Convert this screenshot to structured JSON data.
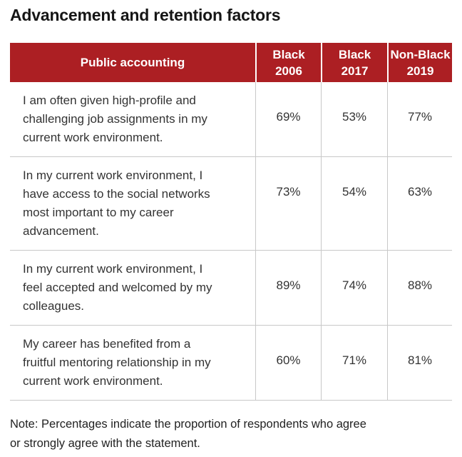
{
  "title": "Advancement and retention factors",
  "chart_data": {
    "type": "table",
    "title": "Advancement and retention factors",
    "columns": [
      "Public accounting",
      "Black\n2006",
      "Black\n2017",
      "Non-Black\n2019"
    ],
    "rows": [
      {
        "statement": "I am often given high-profile and\nchallenging job assignments in my\ncurrent work environment.",
        "values": [
          "69%",
          "53%",
          "77%"
        ]
      },
      {
        "statement": "In my current work environment, I\nhave access to the social networks\nmost important to my career\nadvancement.",
        "values": [
          "73%",
          "54%",
          "63%"
        ]
      },
      {
        "statement": "In my current work environment, I\nfeel accepted and welcomed by my\ncolleagues.",
        "values": [
          "89%",
          "74%",
          "88%"
        ]
      },
      {
        "statement": "My career has benefited from a\nfruitful mentoring relationship in my\ncurrent work environment.",
        "values": [
          "60%",
          "71%",
          "81%"
        ]
      }
    ],
    "note": "Note: Percentages indicate the proportion of respondents who agree\nor strongly agree with the statement."
  },
  "colors": {
    "header_red": "#AC1F23",
    "header_text": "#FFFFFF",
    "divider_gray": "#C8C8C8",
    "body_text": "#333333",
    "title_text": "#161616"
  }
}
